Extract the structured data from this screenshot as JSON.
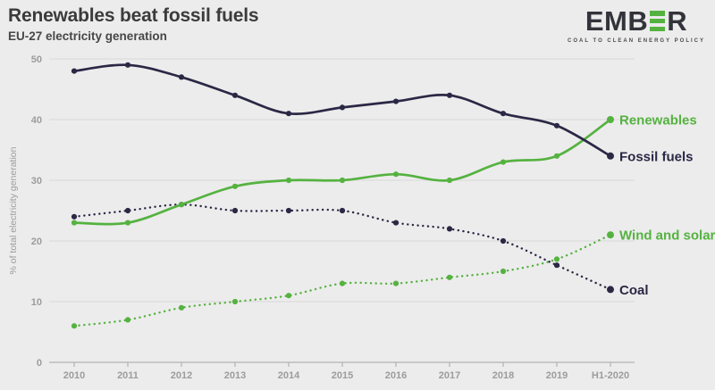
{
  "header": {
    "title": "Renewables beat fossil fuels",
    "subtitle": "EU-27 electricity generation"
  },
  "logo": {
    "left": "EMB",
    "right": "R",
    "tagline": "COAL TO CLEAN ENERGY POLICY"
  },
  "colors": {
    "background": "#ececec",
    "grid": "#dcdcdc",
    "axis": "#b2b2b2",
    "tick_text": "#9c9c9c",
    "title_text": "#3b3b3b",
    "accent_green": "#55b240",
    "accent_navy": "#2b2845"
  },
  "chart_data": {
    "type": "line",
    "title": "Renewables beat fossil fuels",
    "subtitle": "EU-27 electricity generation",
    "xlabel": "",
    "ylabel": "% of total electricity generation",
    "x": [
      "2010",
      "2011",
      "2012",
      "2013",
      "2014",
      "2015",
      "2016",
      "2017",
      "2018",
      "2019",
      "H1-2020"
    ],
    "yticks": [
      0,
      10,
      20,
      30,
      40,
      50
    ],
    "ylim": [
      0,
      50
    ],
    "grid": true,
    "legend": "end-of-line-labels",
    "series": [
      {
        "name": "Wind and solar",
        "style": "dotted",
        "color": "#55b240",
        "values": [
          6,
          7,
          9,
          10,
          11,
          13,
          13,
          14,
          15,
          17,
          21
        ]
      },
      {
        "name": "Coal",
        "style": "dotted",
        "color": "#2b2845",
        "values": [
          24,
          25,
          26,
          25,
          25,
          25,
          23,
          22,
          20,
          16,
          12
        ]
      },
      {
        "name": "Renewables",
        "style": "solid",
        "color": "#55b240",
        "values": [
          23,
          23,
          26,
          29,
          30,
          30,
          31,
          30,
          33,
          34,
          40
        ]
      },
      {
        "name": "Fossil fuels",
        "style": "solid",
        "color": "#2b2845",
        "values": [
          48,
          49,
          47,
          44,
          41,
          42,
          43,
          44,
          41,
          39,
          34
        ]
      }
    ]
  }
}
